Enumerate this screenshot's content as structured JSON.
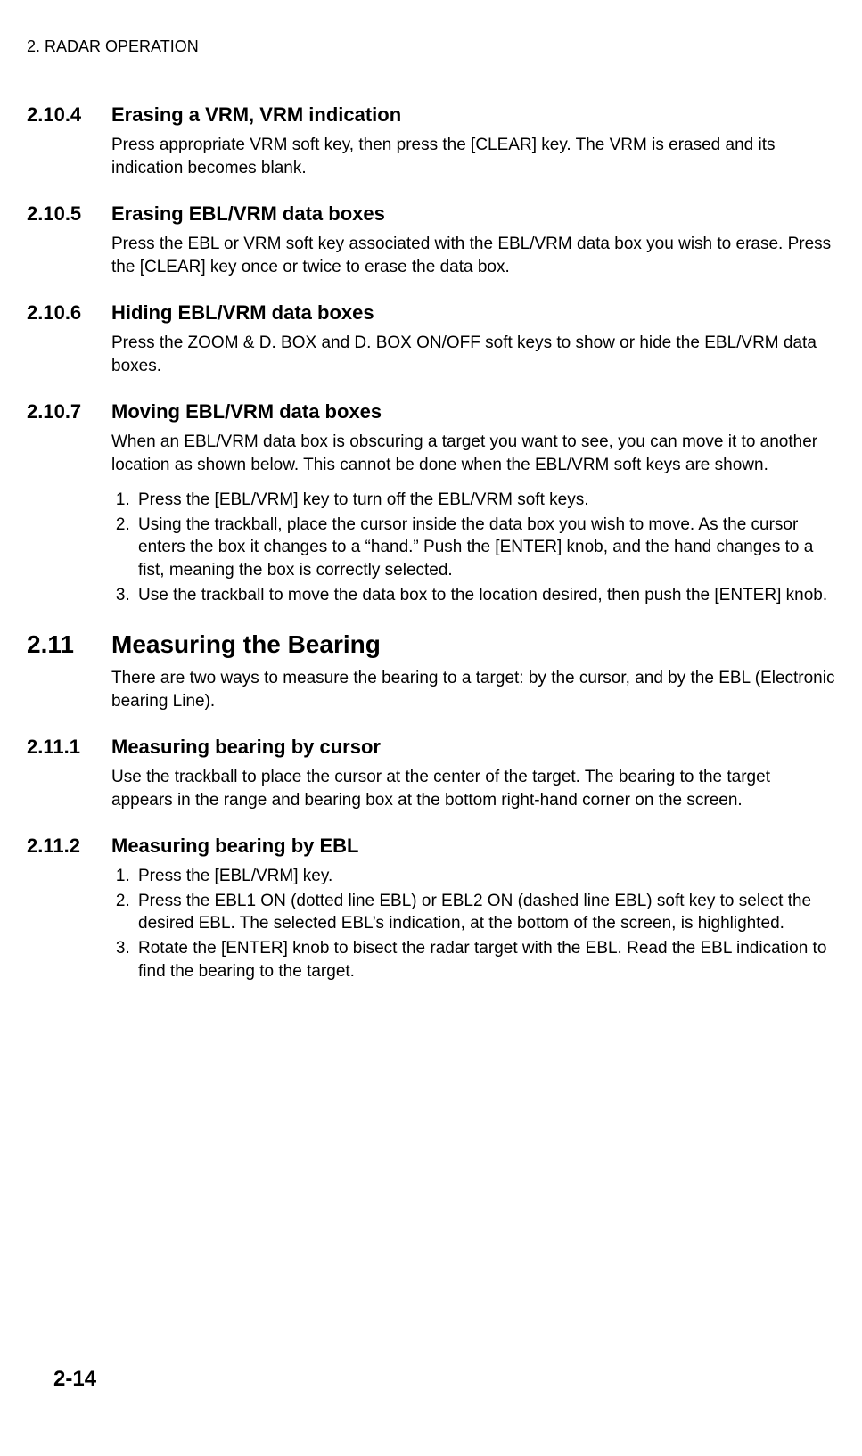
{
  "header": "2. RADAR OPERATION",
  "page_number": "2-14",
  "sections": [
    {
      "number": "2.10.4",
      "title": "Erasing a VRM, VRM indication",
      "body": "Press appropriate VRM soft key, then press the [CLEAR] key. The VRM is erased and its indication becomes blank."
    },
    {
      "number": "2.10.5",
      "title": "Erasing EBL/VRM data boxes",
      "body": "Press the EBL or VRM soft key associated with the EBL/VRM data box you wish to erase. Press the [CLEAR] key once or twice to erase the data box."
    },
    {
      "number": "2.10.6",
      "title": "Hiding EBL/VRM data boxes",
      "body": "Press the ZOOM & D. BOX and D. BOX ON/OFF soft keys to show or hide the EBL/VRM data boxes."
    },
    {
      "number": "2.10.7",
      "title": "Moving EBL/VRM data boxes",
      "body": "When an EBL/VRM data box is obscuring a target you want to see, you can move it to another location as shown below. This cannot be done when the EBL/VRM soft keys are shown.",
      "steps": [
        "Press the [EBL/VRM] key to turn off the EBL/VRM soft keys.",
        "Using the trackball, place the cursor inside the data box you wish to move. As the cursor enters the box it changes to a “hand.” Push the [ENTER] knob, and the hand changes to a fist, meaning the box is correctly selected.",
        "Use the trackball to move the data box to the location desired, then push the [ENTER] knob."
      ]
    },
    {
      "number": "2.11",
      "title": "Measuring the Bearing",
      "big": true,
      "body": "There are two ways to measure the bearing to a target: by the cursor, and by the EBL (Electronic bearing Line)."
    },
    {
      "number": "2.11.1",
      "title": "Measuring bearing by cursor",
      "body": "Use the trackball to place the cursor at the center of the target. The bearing to the target appears in the range and bearing box at the bottom right-hand corner on the screen."
    },
    {
      "number": "2.11.2",
      "title": "Measuring bearing by EBL",
      "steps": [
        "Press the [EBL/VRM] key.",
        "Press the EBL1 ON (dotted line EBL) or EBL2 ON (dashed line EBL) soft key to select the desired EBL. The selected EBL’s indication, at the bottom of the screen, is highlighted.",
        "Rotate the [ENTER] knob to bisect the radar target with the EBL. Read the EBL indication to find the bearing to the target."
      ]
    }
  ]
}
